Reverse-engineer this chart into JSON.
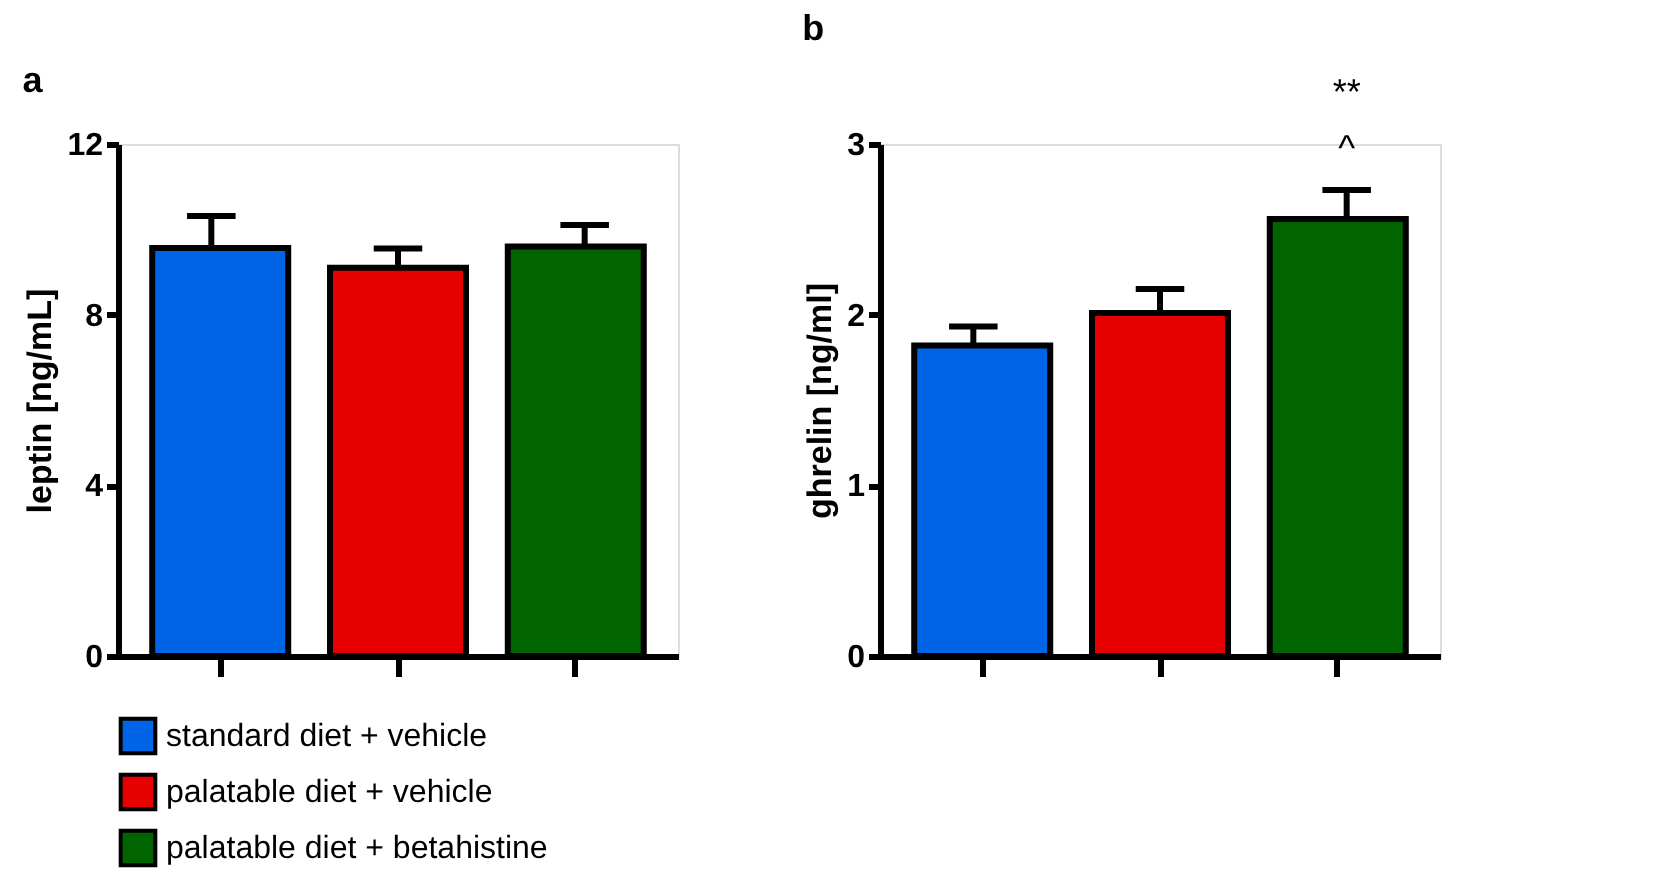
{
  "chart_data": [
    {
      "type": "bar",
      "title": "a",
      "ylabel": "leptin [ng/mL]",
      "categories": [
        null,
        null,
        null
      ],
      "ylim": [
        0,
        12
      ],
      "yticks": [
        0,
        4,
        8,
        12
      ],
      "grid": false,
      "legend": "bottom",
      "series": [
        {
          "name": "standard diet + vehicle",
          "color": "#0064e6",
          "values": [
            9.56,
            null,
            null
          ],
          "errors": [
            0.75,
            null,
            null
          ]
        },
        {
          "name": "palatable diet + vehicle",
          "color": "#e60000",
          "values": [
            null,
            9.1,
            null
          ],
          "errors": [
            null,
            0.45,
            null
          ]
        },
        {
          "name": "palatable diet + betahistine",
          "color": "#006400",
          "values": [
            null,
            null,
            9.6
          ],
          "errors": [
            null,
            null,
            0.5
          ]
        }
      ]
    },
    {
      "type": "bar",
      "title": "b",
      "ylabel": "ghrelin [ng/ml]",
      "categories": [
        null,
        null,
        null
      ],
      "ylim": [
        0,
        3
      ],
      "yticks": [
        0,
        1,
        2,
        3
      ],
      "grid": false,
      "legend": "bottom",
      "annotations": [
        "**",
        "^"
      ],
      "series": [
        {
          "name": "standard diet + vehicle",
          "color": "#0064e6",
          "values": [
            1.82,
            null,
            null
          ],
          "errors": [
            0.11,
            null,
            null
          ]
        },
        {
          "name": "palatable diet + vehicle",
          "color": "#e60000",
          "values": [
            null,
            2.01,
            null
          ],
          "errors": [
            null,
            0.14,
            null
          ]
        },
        {
          "name": "palatable diet + betahistine",
          "color": "#006400",
          "values": [
            null,
            null,
            2.56
          ],
          "errors": [
            null,
            null,
            0.17
          ]
        }
      ]
    }
  ]
}
